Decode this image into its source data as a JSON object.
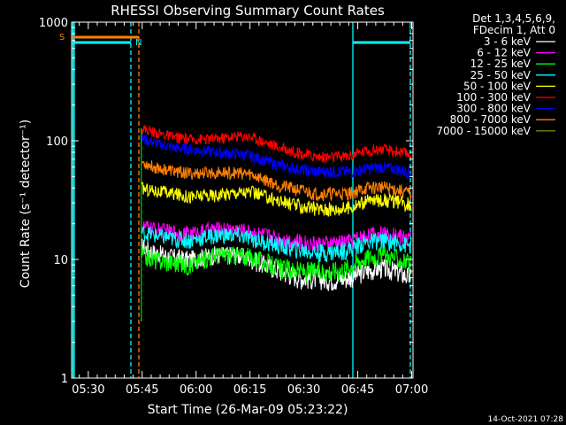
{
  "chart_data": {
    "type": "line",
    "title": "RHESSI Observing Summary Count Rates",
    "xlabel": "Start Time (26-Mar-09 05:23:22)",
    "ylabel": "Count Rate (s⁻¹ detector⁻¹)",
    "y_scale": "log",
    "ylim": [
      1,
      1000
    ],
    "y_ticks": [
      "1",
      "10",
      "100",
      "1000"
    ],
    "x_range_minutes": [
      2.0,
      97.0
    ],
    "x_ticks": [
      {
        "label": "05:30",
        "t": 6.63
      },
      {
        "label": "05:45",
        "t": 21.63
      },
      {
        "label": "06:00",
        "t": 36.63
      },
      {
        "label": "06:15",
        "t": 51.63
      },
      {
        "label": "06:30",
        "t": 66.63
      },
      {
        "label": "06:45",
        "t": 81.63
      },
      {
        "label": "07:00",
        "t": 96.63
      }
    ],
    "legend_header": [
      "Det 1,3,4,5,6,9,",
      "FDecim 1, Att 0"
    ],
    "series": [
      {
        "name": "3 - 6 keV",
        "color": "#ffffff",
        "x": [
          21.5,
          25,
          30,
          35,
          42,
          48,
          52,
          56,
          60,
          66,
          70,
          74,
          78,
          80,
          84,
          88,
          92,
          96.5
        ],
        "y": [
          13,
          11.5,
          10.5,
          10,
          11,
          11,
          10,
          9,
          8,
          7,
          7,
          6.8,
          7,
          7.2,
          8,
          8.5,
          8,
          7
        ]
      },
      {
        "name": "6 - 12 keV",
        "color": "#ff00ff",
        "x": [
          21.5,
          25,
          30,
          35,
          42,
          48,
          52,
          56,
          60,
          66,
          70,
          74,
          78,
          80,
          84,
          88,
          92,
          96.5
        ],
        "y": [
          19,
          18,
          17,
          16.5,
          18,
          18,
          17,
          16,
          15,
          14,
          13.5,
          13.5,
          14,
          14.5,
          16,
          16.5,
          16,
          15
        ]
      },
      {
        "name": "12 - 25 keV",
        "color": "#00ff00",
        "x": [
          21.5,
          25,
          30,
          35,
          42,
          48,
          52,
          56,
          60,
          66,
          70,
          74,
          78,
          80,
          84,
          88,
          92,
          96.5
        ],
        "y": [
          11,
          10,
          9.5,
          9,
          11,
          11,
          10.5,
          9.5,
          8.5,
          8,
          8,
          8,
          8.5,
          9,
          10.5,
          11,
          10.5,
          9
        ]
      },
      {
        "name": "25 - 50 keV",
        "color": "#00ffff",
        "x": [
          21.5,
          25,
          30,
          35,
          42,
          48,
          52,
          56,
          60,
          66,
          70,
          74,
          78,
          80,
          84,
          88,
          92,
          96.5
        ],
        "y": [
          17,
          16,
          15,
          14.5,
          16,
          16,
          15,
          14,
          13,
          12,
          11.5,
          11.5,
          12,
          12.5,
          14,
          14.5,
          14,
          13
        ]
      },
      {
        "name": "50 - 100 keV",
        "color": "#ffff00",
        "x": [
          21.5,
          25,
          30,
          35,
          42,
          48,
          52,
          56,
          60,
          66,
          70,
          74,
          78,
          80,
          84,
          88,
          92,
          96.5
        ],
        "y": [
          40,
          38,
          36,
          34,
          35,
          37,
          37,
          34,
          31,
          28,
          27,
          26.5,
          27,
          28,
          31,
          32,
          31,
          29
        ]
      },
      {
        "name": "100 - 300 keV",
        "color": "#ff0000",
        "x": [
          21.5,
          25,
          30,
          35,
          42,
          48,
          52,
          56,
          60,
          66,
          70,
          74,
          78,
          80,
          84,
          88,
          92,
          96.5
        ],
        "y": [
          128,
          118,
          108,
          103,
          104,
          110,
          108,
          97,
          88,
          78,
          74,
          73,
          74,
          76,
          83,
          85,
          82,
          77
        ]
      },
      {
        "name": "300 - 800 keV",
        "color": "#0000ff",
        "x": [
          21.5,
          25,
          30,
          35,
          42,
          48,
          52,
          56,
          60,
          66,
          70,
          74,
          78,
          80,
          84,
          88,
          92,
          96.5
        ],
        "y": [
          105,
          96,
          88,
          85,
          80,
          78,
          74,
          68,
          62,
          57,
          55,
          55,
          55,
          55,
          58,
          60,
          58,
          54
        ]
      },
      {
        "name": "800 - 7000 keV",
        "color": "#ff8000",
        "x": [
          21.5,
          25,
          30,
          35,
          42,
          48,
          52,
          56,
          60,
          66,
          70,
          74,
          78,
          80,
          84,
          88,
          92,
          96.5
        ],
        "y": [
          66,
          60,
          56,
          53,
          54,
          54,
          52,
          47,
          42,
          38,
          36,
          36,
          36,
          36.5,
          40,
          41,
          39,
          36
        ]
      },
      {
        "name": "7000 - 15000 keV",
        "color": "#808000",
        "x": [],
        "y": []
      }
    ],
    "annotations": [
      {
        "label": "S",
        "color": "#ff8000"
      },
      {
        "label": "N",
        "color": "#00ffff"
      }
    ]
  },
  "timestamp": "14-Oct-2021 07:28"
}
